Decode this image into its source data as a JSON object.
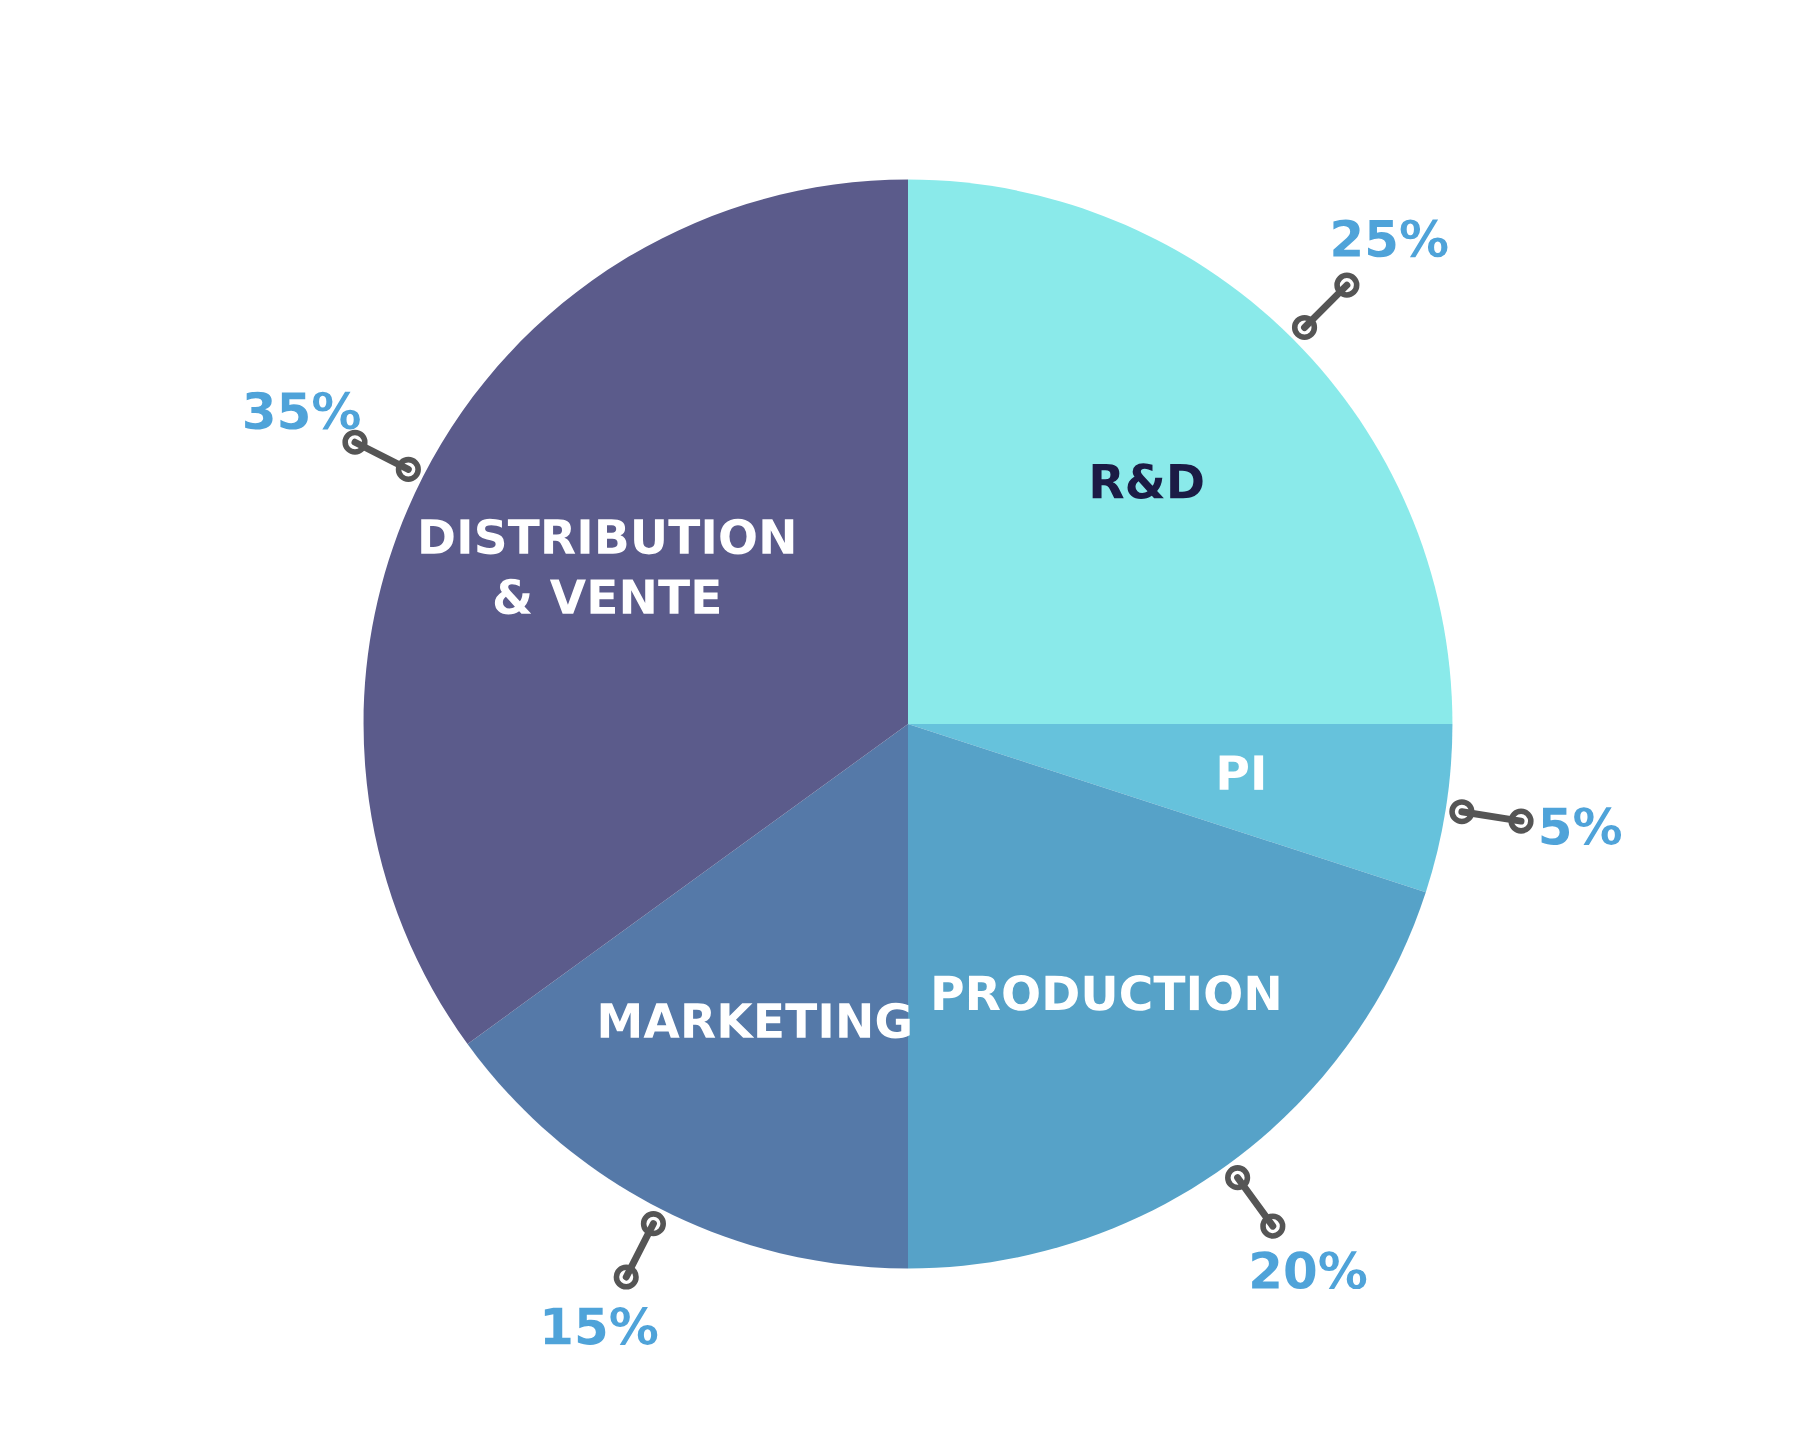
{
  "chart_data": {
    "type": "pie",
    "categories": [
      "R&D",
      "PI",
      "PRODUCTION",
      "MARKETING",
      "DISTRIBUTION\n& VENTE"
    ],
    "values": [
      25,
      5,
      20,
      15,
      35
    ],
    "colors": [
      "#8aeaea",
      "#66c2dc",
      "#56a2c8",
      "#5579a8",
      "#5b5b8b"
    ],
    "value_labels": [
      "25%",
      "5%",
      "20%",
      "15%",
      "35%"
    ],
    "legend": false
  }
}
